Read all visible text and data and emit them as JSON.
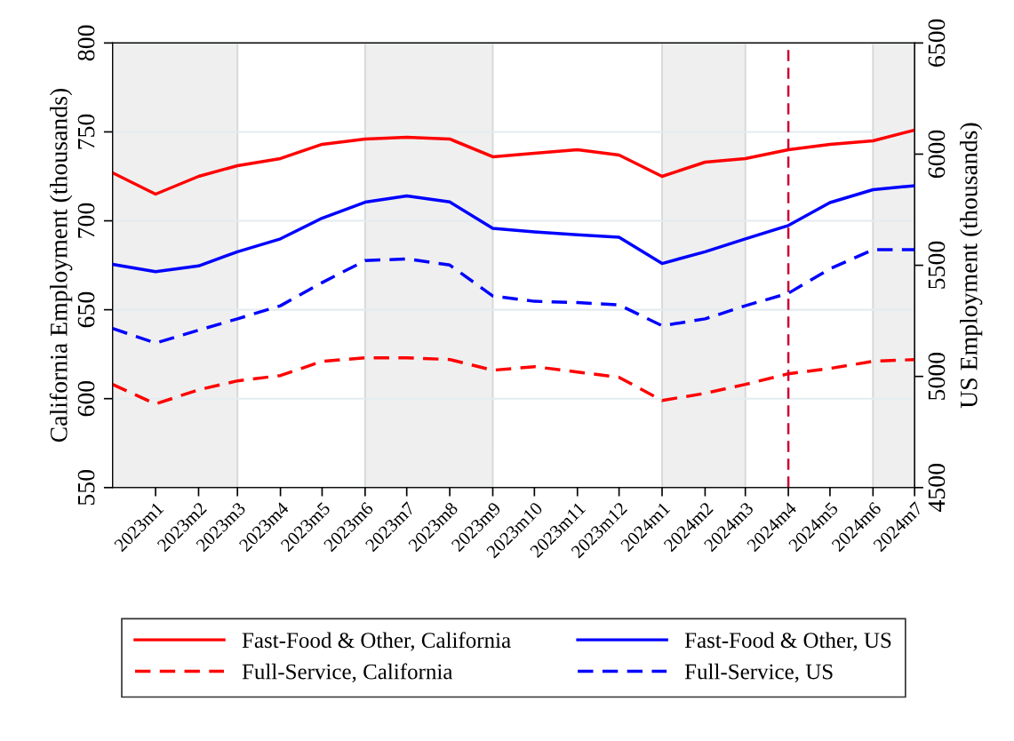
{
  "chart_data": {
    "type": "line",
    "ylabel": "California Employment (thousands)",
    "y2label": "US Employment (thousands)",
    "x": [
      "2022-12",
      "2023-01",
      "2023-02",
      "2023-03",
      "2023-04",
      "2023-05",
      "2023-06",
      "2023-07",
      "2023-08",
      "2023-09",
      "2023-10",
      "2023-11",
      "2023-12",
      "2024-01",
      "2024-02",
      "2024-03",
      "2024-04",
      "2024-05",
      "2024-06",
      "2024-07"
    ],
    "xlim": [
      "2022-12",
      "2024-07"
    ],
    "xticks": [
      {
        "value": "2023-01",
        "label": "2023m1"
      },
      {
        "value": "2023-02",
        "label": "2023m2"
      },
      {
        "value": "2023-03",
        "label": "2023m3"
      },
      {
        "value": "2023-04",
        "label": "2023m4"
      },
      {
        "value": "2023-05",
        "label": "2023m5"
      },
      {
        "value": "2023-06",
        "label": "2023m6"
      },
      {
        "value": "2023-07",
        "label": "2023m7"
      },
      {
        "value": "2023-08",
        "label": "2023m8"
      },
      {
        "value": "2023-09",
        "label": "2023m9"
      },
      {
        "value": "2023-10",
        "label": "2023m10"
      },
      {
        "value": "2023-11",
        "label": "2023m11"
      },
      {
        "value": "2023-12",
        "label": "2023m12"
      },
      {
        "value": "2024-01",
        "label": "2024m1"
      },
      {
        "value": "2024-02",
        "label": "2024m2"
      },
      {
        "value": "2024-03",
        "label": "2024m3"
      },
      {
        "value": "2024-04",
        "label": "2024m4"
      },
      {
        "value": "2024-05",
        "label": "2024m5"
      },
      {
        "value": "2024-06",
        "label": "2024m6"
      },
      {
        "value": "2024-07",
        "label": "2024m7"
      }
    ],
    "ylim": [
      550,
      800
    ],
    "yticks": [
      550,
      600,
      650,
      700,
      750,
      800
    ],
    "y2lim": [
      4500,
      6500
    ],
    "y2ticks": [
      4500,
      5000,
      5500,
      6000,
      6500
    ],
    "series": [
      {
        "name": "Fast-Food & Other, California",
        "color": "#ff0000",
        "line_style": "solid",
        "values": [
          727,
          715,
          725,
          731,
          735,
          743,
          746,
          747,
          746,
          736,
          738,
          740,
          737,
          725,
          733,
          735,
          740,
          743,
          745,
          751
        ]
      },
      {
        "name": "Fast-Food & Other, US",
        "color": "#0000ff",
        "line_style": "solid",
        "axis": "y2",
        "values": [
          5504,
          5471,
          5497,
          5561,
          5619,
          5712,
          5784,
          5812,
          5785,
          5666,
          5650,
          5637,
          5626,
          5508,
          5561,
          5619,
          5679,
          5782,
          5840,
          5858
        ]
      },
      {
        "name": "Full-Service, California",
        "color": "#ff0000",
        "line_style": "dashed",
        "values": [
          608,
          597,
          605,
          610,
          613,
          621,
          623,
          623,
          622,
          616,
          618,
          615,
          612,
          599,
          603,
          608,
          614,
          617,
          621,
          622
        ]
      },
      {
        "name": "Full-Service, US",
        "color": "#0000ff",
        "line_style": "dashed",
        "axis": "y2",
        "values": [
          5216,
          5150,
          5208,
          5259,
          5318,
          5422,
          5521,
          5529,
          5501,
          5362,
          5338,
          5332,
          5322,
          5228,
          5259,
          5318,
          5374,
          5484,
          5570,
          5570
        ]
      }
    ],
    "bands": [
      {
        "axis": "x",
        "from": "2022-12",
        "to": "2023-03",
        "color": "#efefef"
      },
      {
        "axis": "x",
        "from": "2023-06",
        "to": "2023-09",
        "color": "#efefef"
      },
      {
        "axis": "x",
        "from": "2024-01",
        "to": "2024-03",
        "color": "#efefef"
      },
      {
        "axis": "x",
        "from": "2024-06",
        "to": "2024-07",
        "color": "#efefef"
      }
    ],
    "ref_lines": [
      {
        "axis": "x",
        "value": "2024-04",
        "color": "#cc0033",
        "line_style": "dashed"
      }
    ],
    "grid": "y",
    "legend": "bottom",
    "marker": "none"
  }
}
